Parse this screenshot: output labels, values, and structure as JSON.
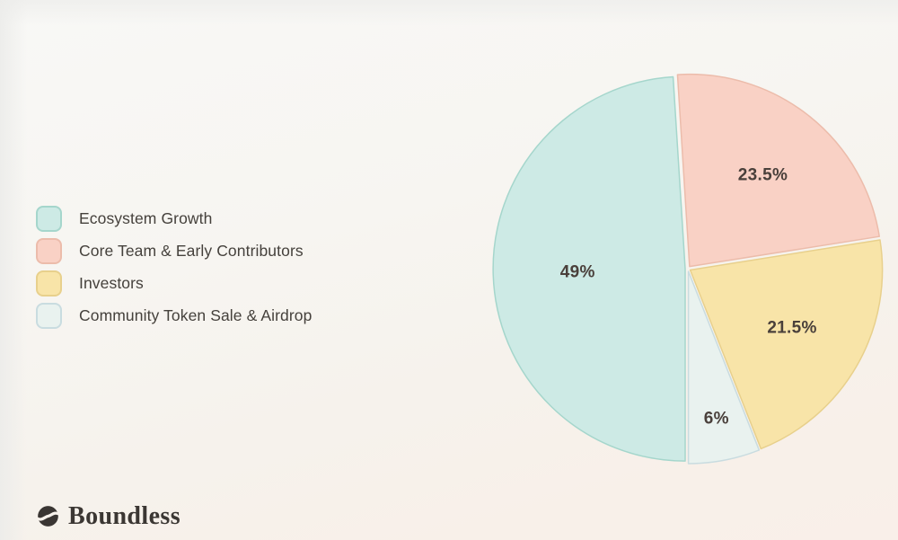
{
  "brand": {
    "name": "Boundless"
  },
  "chart_data": {
    "type": "pie",
    "title": "",
    "legend_position": "left",
    "direction": "clockwise",
    "start_angle_deg": 180,
    "gridlines": false,
    "slices": [
      {
        "label": "Ecosystem Growth",
        "value": 49,
        "display": "49%",
        "color": "#cdeae5",
        "border": "#a5d6cc"
      },
      {
        "label": "Core Team & Early Contributors",
        "value": 23.5,
        "display": "23.5%",
        "color": "#f9d1c5",
        "border": "#ecbcab"
      },
      {
        "label": "Investors",
        "value": 21.5,
        "display": "21.5%",
        "color": "#f8e4a8",
        "border": "#e8d08c"
      },
      {
        "label": "Community Token Sale & Airdrop",
        "value": 6,
        "display": "6%",
        "color": "#e9f2ef",
        "border": "#c9dce0"
      }
    ],
    "value_label_color": "#4a403b"
  },
  "colors": {
    "background_top": "#f8f8f6",
    "background_bottom": "#f9efe9",
    "legend_text": "#45413c",
    "wordmark_text": "#3b3733",
    "logo_icon": "#3a3633"
  }
}
